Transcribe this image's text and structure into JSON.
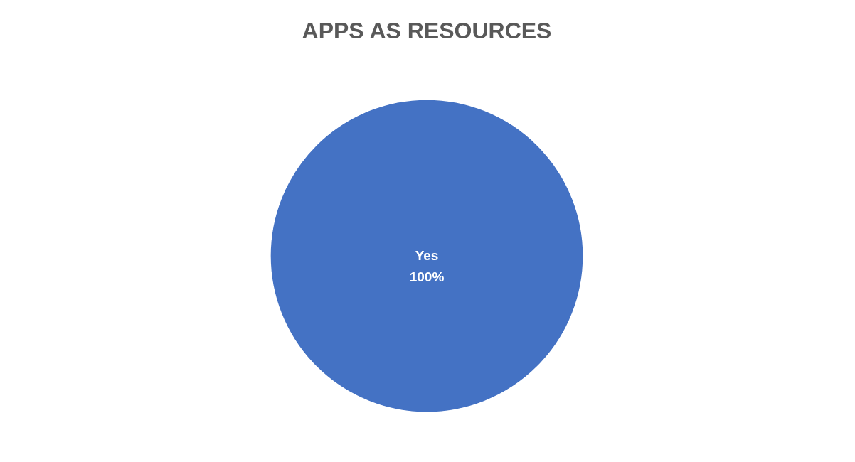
{
  "chart_data": {
    "type": "pie",
    "title": "APPS AS RESOURCES",
    "categories": [
      "Yes"
    ],
    "values": [
      100
    ],
    "colors": [
      "#4472c4"
    ],
    "value_labels": [
      "100%"
    ]
  }
}
